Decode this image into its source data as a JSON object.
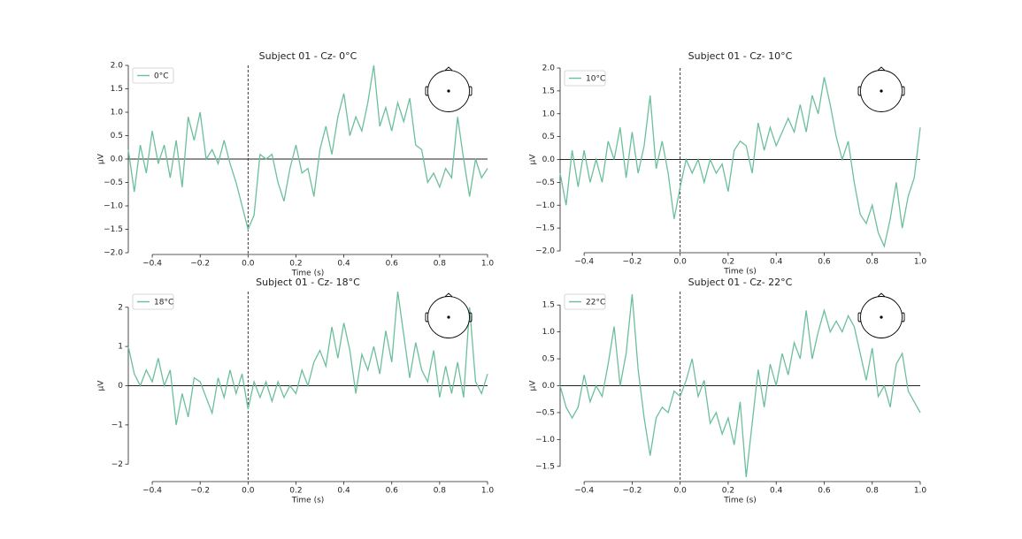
{
  "chart_data": [
    {
      "type": "line",
      "title": "Subject 01 - Cz- 0°C",
      "xlabel": "Time (s)",
      "ylabel": "µV",
      "legend": "upper left",
      "x": [
        -0.5,
        -0.475,
        -0.45,
        -0.425,
        -0.4,
        -0.375,
        -0.35,
        -0.325,
        -0.3,
        -0.275,
        -0.25,
        -0.225,
        -0.2,
        -0.175,
        -0.15,
        -0.125,
        -0.1,
        -0.075,
        -0.05,
        -0.025,
        0,
        0.025,
        0.05,
        0.075,
        0.1,
        0.125,
        0.15,
        0.175,
        0.2,
        0.225,
        0.25,
        0.275,
        0.3,
        0.325,
        0.35,
        0.375,
        0.4,
        0.425,
        0.45,
        0.475,
        0.5,
        0.525,
        0.55,
        0.575,
        0.6,
        0.625,
        0.65,
        0.675,
        0.7,
        0.725,
        0.75,
        0.775,
        0.8,
        0.825,
        0.85,
        0.875,
        0.9,
        0.925,
        0.95,
        0.975,
        1
      ],
      "series": [
        {
          "name": "0°C",
          "color": "#6cbf9c",
          "values": [
            0.2,
            -0.7,
            0.3,
            -0.3,
            0.6,
            -0.1,
            0.3,
            -0.4,
            0.4,
            -0.6,
            0.9,
            0.4,
            1.0,
            0.0,
            0.2,
            -0.1,
            0.4,
            -0.1,
            -0.5,
            -1.0,
            -1.5,
            -1.2,
            0.1,
            0.0,
            0.1,
            -0.5,
            -0.9,
            -0.2,
            0.3,
            -0.3,
            -0.2,
            -0.8,
            0.2,
            0.7,
            0.1,
            0.9,
            1.4,
            0.5,
            0.9,
            0.6,
            1.2,
            2.0,
            0.7,
            1.1,
            0.6,
            1.2,
            0.8,
            1.3,
            0.3,
            0.2,
            -0.5,
            -0.3,
            -0.6,
            -0.2,
            -0.4,
            0.9,
            0.0,
            -0.8,
            0.0,
            -0.4,
            -0.2
          ]
        }
      ],
      "xlim": [
        -0.5,
        1
      ],
      "ylim": [
        -2,
        2
      ],
      "xticks": [
        {
          "value": -0.4,
          "label": "−0.4"
        },
        {
          "value": -0.2,
          "label": "−0.2"
        },
        {
          "value": 0,
          "label": "0.0"
        },
        0.2,
        0.4,
        0.6,
        0.8,
        {
          "value": 1,
          "label": "1.0"
        }
      ],
      "yticks": [
        {
          "value": -2,
          "label": "−2.0"
        },
        {
          "value": -1.5,
          "label": "−1.5"
        },
        {
          "value": -1,
          "label": "−1.0"
        },
        {
          "value": -0.5,
          "label": "−0.5"
        },
        {
          "value": 0,
          "label": "0.0"
        },
        0.5,
        {
          "value": 1,
          "label": "1.0"
        },
        1.5,
        {
          "value": 2,
          "label": "2.0"
        }
      ]
    },
    {
      "type": "line",
      "title": "Subject 01 - Cz- 10°C",
      "xlabel": "Time (s)",
      "ylabel": "µV",
      "legend": "upper left",
      "x": [
        -0.5,
        -0.475,
        -0.45,
        -0.425,
        -0.4,
        -0.375,
        -0.35,
        -0.325,
        -0.3,
        -0.275,
        -0.25,
        -0.225,
        -0.2,
        -0.175,
        -0.15,
        -0.125,
        -0.1,
        -0.075,
        -0.05,
        -0.025,
        0,
        0.025,
        0.05,
        0.075,
        0.1,
        0.125,
        0.15,
        0.175,
        0.2,
        0.225,
        0.25,
        0.275,
        0.3,
        0.325,
        0.35,
        0.375,
        0.4,
        0.425,
        0.45,
        0.475,
        0.5,
        0.525,
        0.55,
        0.575,
        0.6,
        0.625,
        0.65,
        0.675,
        0.7,
        0.725,
        0.75,
        0.775,
        0.8,
        0.825,
        0.85,
        0.875,
        0.9,
        0.925,
        0.95,
        0.975,
        1
      ],
      "series": [
        {
          "name": "10°C",
          "color": "#6cbf9c",
          "values": [
            -0.3,
            -1.0,
            0.2,
            -0.6,
            0.2,
            -0.5,
            0.0,
            -0.5,
            0.4,
            0.0,
            0.7,
            -0.4,
            0.6,
            -0.3,
            0.3,
            1.4,
            -0.2,
            0.4,
            -0.3,
            -1.3,
            -0.6,
            0.0,
            -0.3,
            0.0,
            -0.5,
            0.0,
            -0.3,
            -0.1,
            -0.7,
            0.2,
            0.4,
            0.3,
            -0.3,
            0.8,
            0.2,
            0.7,
            0.3,
            0.6,
            0.9,
            0.6,
            1.2,
            0.6,
            1.4,
            1.0,
            1.8,
            1.2,
            0.5,
            0.0,
            0.4,
            -0.5,
            -1.2,
            -1.4,
            -1.0,
            -1.6,
            -1.9,
            -1.3,
            -0.5,
            -1.5,
            -0.8,
            -0.4,
            0.7
          ]
        }
      ],
      "xlim": [
        -0.5,
        1
      ],
      "ylim": [
        -2,
        2
      ],
      "xticks": [
        {
          "value": -0.4,
          "label": "−0.4"
        },
        {
          "value": -0.2,
          "label": "−0.2"
        },
        {
          "value": 0,
          "label": "0.0"
        },
        0.2,
        0.4,
        0.6,
        0.8,
        {
          "value": 1,
          "label": "1.0"
        }
      ],
      "yticks": [
        {
          "value": -2,
          "label": "−2.0"
        },
        {
          "value": -1.5,
          "label": "−1.5"
        },
        {
          "value": -1,
          "label": "−1.0"
        },
        {
          "value": -0.5,
          "label": "−0.5"
        },
        {
          "value": 0,
          "label": "0.0"
        },
        0.5,
        {
          "value": 1,
          "label": "1.0"
        },
        1.5,
        {
          "value": 2,
          "label": "2.0"
        }
      ]
    },
    {
      "type": "line",
      "title": "Subject 01 - Cz- 18°C",
      "xlabel": "Time (s)",
      "ylabel": "µV",
      "legend": "upper left",
      "x": [
        -0.5,
        -0.475,
        -0.45,
        -0.425,
        -0.4,
        -0.375,
        -0.35,
        -0.325,
        -0.3,
        -0.275,
        -0.25,
        -0.225,
        -0.2,
        -0.175,
        -0.15,
        -0.125,
        -0.1,
        -0.075,
        -0.05,
        -0.025,
        0,
        0.025,
        0.05,
        0.075,
        0.1,
        0.125,
        0.15,
        0.175,
        0.2,
        0.225,
        0.25,
        0.275,
        0.3,
        0.325,
        0.35,
        0.375,
        0.4,
        0.425,
        0.45,
        0.475,
        0.5,
        0.525,
        0.55,
        0.575,
        0.6,
        0.625,
        0.65,
        0.675,
        0.7,
        0.725,
        0.75,
        0.775,
        0.8,
        0.825,
        0.85,
        0.875,
        0.9,
        0.925,
        0.95,
        0.975,
        1
      ],
      "series": [
        {
          "name": "18°C",
          "color": "#6cbf9c",
          "values": [
            1.0,
            0.3,
            0.0,
            0.4,
            0.1,
            0.7,
            0.0,
            0.4,
            -1.0,
            -0.2,
            -0.8,
            0.2,
            0.1,
            -0.3,
            -0.7,
            0.2,
            -0.3,
            0.4,
            -0.2,
            0.3,
            -0.6,
            0.1,
            -0.3,
            0.1,
            -0.4,
            0.1,
            -0.3,
            0.0,
            -0.2,
            0.4,
            0.0,
            0.6,
            0.9,
            0.5,
            1.5,
            0.7,
            1.6,
            0.9,
            -0.2,
            0.8,
            0.4,
            1.0,
            0.3,
            1.4,
            0.6,
            2.4,
            1.3,
            0.2,
            1.1,
            0.4,
            0.1,
            0.9,
            -0.3,
            0.5,
            -0.2,
            0.6,
            -0.3,
            2.0,
            0.1,
            -0.2,
            0.3
          ]
        }
      ],
      "xlim": [
        -0.5,
        1
      ],
      "ylim": [
        -2.4,
        2.4
      ],
      "xticks": [
        {
          "value": -0.4,
          "label": "−0.4"
        },
        {
          "value": -0.2,
          "label": "−0.2"
        },
        {
          "value": 0,
          "label": "0.0"
        },
        0.2,
        0.4,
        0.6,
        0.8,
        {
          "value": 1,
          "label": "1.0"
        }
      ],
      "yticks": [
        {
          "value": -2,
          "label": "−2"
        },
        {
          "value": -1,
          "label": "−1"
        },
        0,
        1,
        2
      ]
    },
    {
      "type": "line",
      "title": "Subject 01 - Cz- 22°C",
      "xlabel": "Time (s)",
      "ylabel": "µV",
      "legend": "upper left",
      "x": [
        -0.5,
        -0.475,
        -0.45,
        -0.425,
        -0.4,
        -0.375,
        -0.35,
        -0.325,
        -0.3,
        -0.275,
        -0.25,
        -0.225,
        -0.2,
        -0.175,
        -0.15,
        -0.125,
        -0.1,
        -0.075,
        -0.05,
        -0.025,
        0,
        0.025,
        0.05,
        0.075,
        0.1,
        0.125,
        0.15,
        0.175,
        0.2,
        0.225,
        0.25,
        0.275,
        0.3,
        0.325,
        0.35,
        0.375,
        0.4,
        0.425,
        0.45,
        0.475,
        0.5,
        0.525,
        0.55,
        0.575,
        0.6,
        0.625,
        0.65,
        0.675,
        0.7,
        0.725,
        0.75,
        0.775,
        0.8,
        0.825,
        0.85,
        0.875,
        0.9,
        0.925,
        0.95,
        0.975,
        1
      ],
      "series": [
        {
          "name": "22°C",
          "color": "#6cbf9c",
          "values": [
            0.0,
            -0.4,
            -0.6,
            -0.4,
            0.2,
            -0.3,
            0.0,
            -0.2,
            0.4,
            1.1,
            0.0,
            0.6,
            1.7,
            0.3,
            -0.6,
            -1.3,
            -0.6,
            -0.4,
            -0.5,
            -0.1,
            -0.2,
            0.1,
            0.5,
            -0.2,
            0.1,
            -0.7,
            -0.5,
            -0.9,
            -0.6,
            -1.1,
            -0.3,
            -1.7,
            -0.7,
            0.3,
            -0.4,
            0.4,
            0.0,
            0.6,
            0.2,
            0.8,
            0.5,
            1.4,
            0.5,
            1.0,
            1.4,
            1.0,
            1.2,
            1.0,
            1.3,
            1.1,
            0.6,
            0.1,
            0.7,
            -0.2,
            0.0,
            -0.4,
            0.4,
            0.6,
            -0.1,
            -0.3,
            -0.5
          ]
        }
      ],
      "xlim": [
        -0.5,
        1
      ],
      "ylim": [
        -1.75,
        1.75
      ],
      "xticks": [
        {
          "value": -0.4,
          "label": "−0.4"
        },
        {
          "value": -0.2,
          "label": "−0.2"
        },
        {
          "value": 0,
          "label": "0.0"
        },
        0.2,
        0.4,
        0.6,
        0.8,
        {
          "value": 1,
          "label": "1.0"
        }
      ],
      "yticks": [
        {
          "value": -1.5,
          "label": "−1.5"
        },
        {
          "value": -1,
          "label": "−1.0"
        },
        {
          "value": -0.5,
          "label": "−0.5"
        },
        {
          "value": 0,
          "label": "0.0"
        },
        0.5,
        {
          "value": 1,
          "label": "1.0"
        },
        1.5
      ]
    }
  ]
}
